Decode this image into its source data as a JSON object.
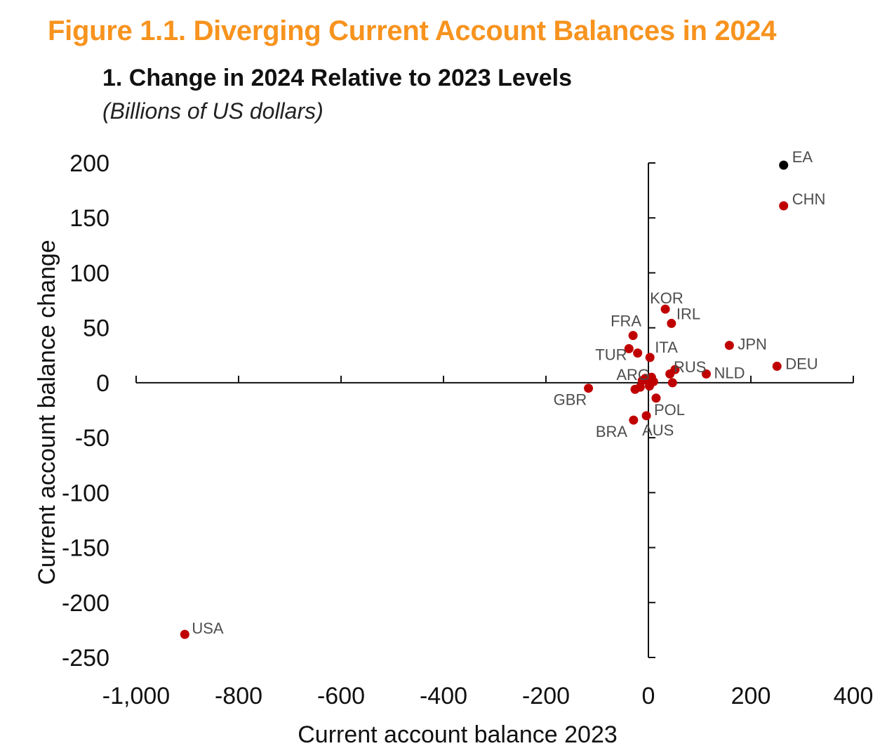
{
  "figure_title": "Figure 1.1. Diverging Current Account Balances in 2024",
  "panel_title": "1. Change in 2024 Relative to 2023 Levels",
  "panel_subtitle": "(Billions of US dollars)",
  "colors": {
    "title": "#f7931e",
    "point": "#c00000",
    "highlight": "#000000",
    "axis": "#111111",
    "label": "#4d4d4d"
  },
  "chart_data": {
    "type": "scatter",
    "title": "1. Change in 2024 Relative to 2023 Levels",
    "subtitle": "(Billions of US dollars)",
    "xlabel": "Current account balance 2023",
    "ylabel": "Current account balance change",
    "xlim": [
      -1000,
      400
    ],
    "ylim": [
      -250,
      200
    ],
    "x_ticks": [
      -1000,
      -800,
      -600,
      -400,
      -200,
      0,
      200,
      400
    ],
    "x_tick_labels": [
      "-1,000",
      "-800",
      "-600",
      "-400",
      "-200",
      "0",
      "200",
      "400"
    ],
    "y_ticks": [
      200,
      150,
      100,
      50,
      0,
      -50,
      -100,
      -150,
      -200,
      -250
    ],
    "y_tick_labels": [
      "200",
      "150",
      "100",
      "50",
      "0",
      "-50",
      "-100",
      "-150",
      "-200",
      "-250"
    ],
    "grid": false,
    "points": [
      {
        "label": "EA",
        "x": 264,
        "y": 198,
        "highlight": true
      },
      {
        "label": "CHN",
        "x": 264,
        "y": 161
      },
      {
        "label": "KOR",
        "x": 33,
        "y": 67
      },
      {
        "label": "IRL",
        "x": 45,
        "y": 54
      },
      {
        "label": "FRA",
        "x": -30,
        "y": 43
      },
      {
        "label": "TUR",
        "x": -38,
        "y": 31
      },
      {
        "label": "",
        "x": -21,
        "y": 27
      },
      {
        "label": "ITA",
        "x": 3,
        "y": 23
      },
      {
        "label": "JPN",
        "x": 158,
        "y": 34
      },
      {
        "label": "DEU",
        "x": 251,
        "y": 15
      },
      {
        "label": "RUS",
        "x": 52,
        "y": 12
      },
      {
        "label": "NLD",
        "x": 113,
        "y": 8
      },
      {
        "label": "ARG",
        "x": 6,
        "y": 5
      },
      {
        "label": "",
        "x": -12,
        "y": 2
      },
      {
        "label": "",
        "x": -6,
        "y": 4
      },
      {
        "label": "",
        "x": 2,
        "y": -3
      },
      {
        "label": "",
        "x": -16,
        "y": -4
      },
      {
        "label": "",
        "x": 10,
        "y": 1
      },
      {
        "label": "",
        "x": 42,
        "y": 8
      },
      {
        "label": "",
        "x": 47,
        "y": 0
      },
      {
        "label": "",
        "x": -26,
        "y": -6
      },
      {
        "label": "GBR",
        "x": -117,
        "y": -5
      },
      {
        "label": "POL",
        "x": 15,
        "y": -14
      },
      {
        "label": "AUS",
        "x": -4,
        "y": -30
      },
      {
        "label": "BRA",
        "x": -29,
        "y": -34
      },
      {
        "label": "USA",
        "x": -905,
        "y": -229
      }
    ]
  }
}
